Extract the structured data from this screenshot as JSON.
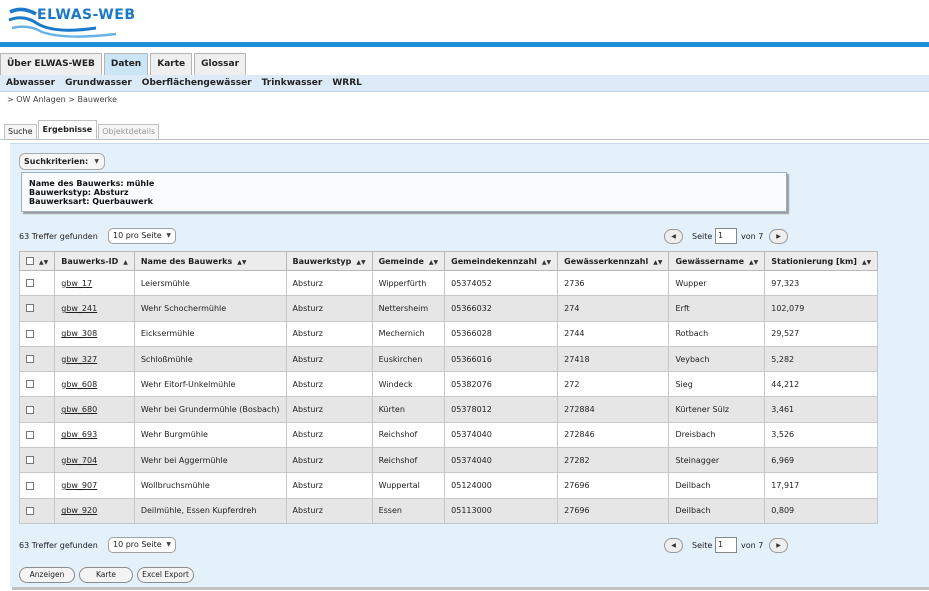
{
  "header": {
    "logo_text": "ELWAS-WEB",
    "brand_color": "#1c8fd6"
  },
  "main_tabs": [
    {
      "label": "Über ELWAS-WEB",
      "active": false
    },
    {
      "label": "Daten",
      "active": true
    },
    {
      "label": "Karte",
      "active": false
    },
    {
      "label": "Glossar",
      "active": false
    }
  ],
  "subnav": [
    "Abwasser",
    "Grundwasser",
    "Oberflächengewässer",
    "Trinkwasser",
    "WRRL"
  ],
  "breadcrumb": "> OW Anlagen > Bauwerke",
  "sub_tabs": [
    {
      "label": "Suche",
      "state": "normal"
    },
    {
      "label": "Ergebnisse",
      "state": "active"
    },
    {
      "label": "Objektdetails",
      "state": "disabled"
    }
  ],
  "criteria": {
    "button_label": "Suchkriterien:",
    "lines": [
      "Name des Bauwerks: mühle",
      "Bauwerkstyp: Absturz",
      "Bauwerksart: Querbauwerk"
    ]
  },
  "pager": {
    "hits": "63 Treffer gefunden",
    "per_page": "10 pro Seite",
    "page_label": "Seite",
    "page_value": "1",
    "of_label": "von 7"
  },
  "table": {
    "columns": [
      "Bauwerks-ID",
      "Name des Bauwerks",
      "Bauwerkstyp",
      "Gemeinde",
      "Gemeindekennzahl",
      "Gewässerkennzahl",
      "Gewässername",
      "Stationierung [km]"
    ],
    "rows": [
      [
        "gbw_17",
        "Leiersmühle",
        "Absturz",
        "Wipperfürth",
        "05374052",
        "2736",
        "Wupper",
        "97,323"
      ],
      [
        "gbw_241",
        "Wehr Schochermühle",
        "Absturz",
        "Nettersheim",
        "05366032",
        "274",
        "Erft",
        "102,079"
      ],
      [
        "gbw_308",
        "Eicksermühle",
        "Absturz",
        "Mechernich",
        "05366028",
        "2744",
        "Rotbach",
        "29,527"
      ],
      [
        "gbw_327",
        "Schloßmühle",
        "Absturz",
        "Euskirchen",
        "05366016",
        "27418",
        "Veybach",
        "5,282"
      ],
      [
        "gbw_608",
        "Wehr Eitorf-Unkelmühle",
        "Absturz",
        "Windeck",
        "05382076",
        "272",
        "Sieg",
        "44,212"
      ],
      [
        "gbw_680",
        "Wehr bei Grundermühle (Bosbach)",
        "Absturz",
        "Kürten",
        "05378012",
        "272884",
        "Kürtener Sülz",
        "3,461"
      ],
      [
        "gbw_693",
        "Wehr Burgmühle",
        "Absturz",
        "Reichshof",
        "05374040",
        "272846",
        "Dreisbach",
        "3,526"
      ],
      [
        "gbw_704",
        "Wehr bei Aggermühle",
        "Absturz",
        "Reichshof",
        "05374040",
        "27282",
        "Steinagger",
        "6,969"
      ],
      [
        "gbw_907",
        "Wollbruchsmühle",
        "Absturz",
        "Wuppertal",
        "05124000",
        "27696",
        "Deilbach",
        "17,917"
      ],
      [
        "gbw_920",
        "Deilmühle, Essen Kupferdreh",
        "Absturz",
        "Essen",
        "05113000",
        "27696",
        "Deilbach",
        "0,809"
      ]
    ]
  },
  "buttons": {
    "show": "Anzeigen",
    "map": "Karte",
    "export": "Excel Export"
  }
}
